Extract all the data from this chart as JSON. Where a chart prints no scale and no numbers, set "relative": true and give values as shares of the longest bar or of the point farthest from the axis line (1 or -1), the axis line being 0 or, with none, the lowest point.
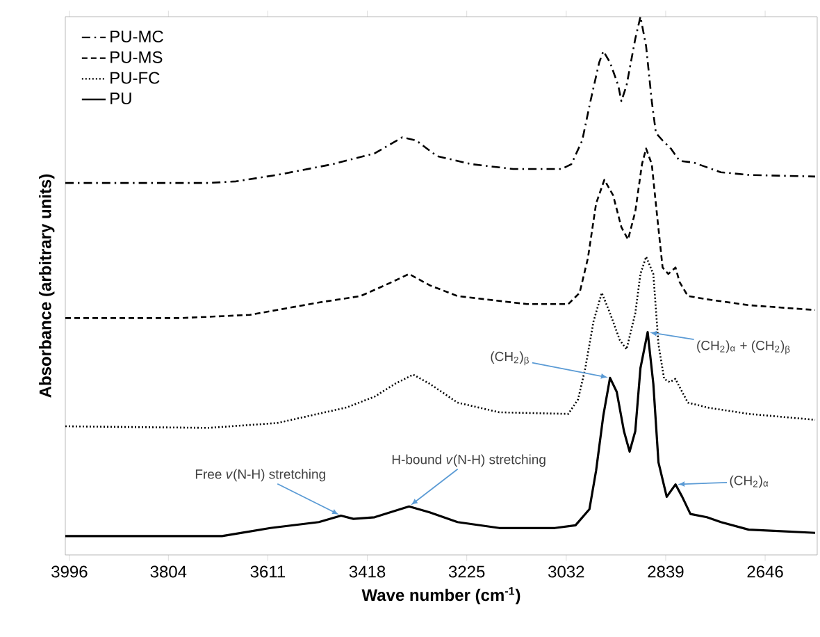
{
  "chart_data": {
    "type": "line",
    "relative": true,
    "xlabel": "Wave number (cm$^{-1}$)",
    "ylabel": "Absorbance  (arbitrary units)",
    "xlim": [
      4004,
      2545
    ],
    "xticks": [
      3996,
      3804,
      3611,
      3418,
      3225,
      3032,
      2839,
      2646
    ],
    "legend": "top left",
    "grid": false,
    "series": [
      {
        "name": "PU-MC",
        "color": "#000000",
        "line_style": "dashdot",
        "x": [
          4004,
          3727,
          3673,
          3593,
          3485,
          3404,
          3350,
          3323,
          3283,
          3216,
          3135,
          3041,
          3022,
          3001,
          2985,
          2968,
          2960,
          2947,
          2931,
          2925,
          2915,
          2898,
          2888,
          2877,
          2866,
          2858,
          2845,
          2829,
          2812,
          2785,
          2732,
          2678,
          2549
        ],
        "values": [
          0.691,
          0.691,
          0.694,
          0.706,
          0.726,
          0.746,
          0.776,
          0.77,
          0.741,
          0.726,
          0.717,
          0.717,
          0.726,
          0.77,
          0.843,
          0.915,
          0.936,
          0.915,
          0.872,
          0.843,
          0.872,
          0.959,
          1.0,
          0.945,
          0.843,
          0.784,
          0.77,
          0.755,
          0.732,
          0.729,
          0.711,
          0.706,
          0.703
        ]
      },
      {
        "name": "PU-MS",
        "color": "#000000",
        "line_style": "dashed",
        "x": [
          4004,
          3781,
          3646,
          3512,
          3431,
          3377,
          3337,
          3297,
          3243,
          3108,
          3028,
          3006,
          2990,
          2974,
          2958,
          2941,
          2925,
          2912,
          2898,
          2885,
          2877,
          2866,
          2855,
          2845,
          2834,
          2820,
          2812,
          2796,
          2759,
          2678,
          2549
        ],
        "values": [
          0.44,
          0.44,
          0.446,
          0.469,
          0.481,
          0.504,
          0.522,
          0.501,
          0.481,
          0.466,
          0.466,
          0.487,
          0.551,
          0.653,
          0.697,
          0.668,
          0.609,
          0.586,
          0.638,
          0.726,
          0.755,
          0.726,
          0.624,
          0.534,
          0.522,
          0.534,
          0.507,
          0.481,
          0.475,
          0.464,
          0.455
        ]
      },
      {
        "name": "PU-FC",
        "color": "#000000",
        "line_style": "dotted",
        "x": [
          4004,
          3727,
          3593,
          3458,
          3404,
          3364,
          3329,
          3297,
          3243,
          3162,
          3028,
          3009,
          2995,
          2979,
          2963,
          2947,
          2928,
          2915,
          2898,
          2888,
          2877,
          2863,
          2853,
          2842,
          2831,
          2820,
          2812,
          2796,
          2759,
          2678,
          2549
        ],
        "values": [
          0.239,
          0.236,
          0.245,
          0.274,
          0.294,
          0.318,
          0.335,
          0.318,
          0.283,
          0.265,
          0.262,
          0.289,
          0.347,
          0.434,
          0.487,
          0.449,
          0.399,
          0.382,
          0.449,
          0.522,
          0.554,
          0.522,
          0.391,
          0.327,
          0.321,
          0.327,
          0.312,
          0.283,
          0.274,
          0.262,
          0.251
        ]
      },
      {
        "name": "PU",
        "color": "#000000",
        "line_style": "solid",
        "x": [
          4004,
          3700,
          3606,
          3512,
          3469,
          3445,
          3404,
          3337,
          3297,
          3243,
          3162,
          3054,
          3014,
          2987,
          2974,
          2960,
          2947,
          2934,
          2920,
          2909,
          2898,
          2888,
          2874,
          2863,
          2853,
          2837,
          2820,
          2807,
          2791,
          2759,
          2732,
          2678,
          2549
        ],
        "values": [
          0.035,
          0.035,
          0.05,
          0.061,
          0.073,
          0.067,
          0.07,
          0.09,
          0.079,
          0.061,
          0.05,
          0.05,
          0.055,
          0.085,
          0.157,
          0.259,
          0.329,
          0.303,
          0.23,
          0.192,
          0.23,
          0.347,
          0.414,
          0.318,
          0.172,
          0.108,
          0.131,
          0.108,
          0.076,
          0.07,
          0.061,
          0.047,
          0.041
        ]
      }
    ],
    "annotations": [
      {
        "text": "Free *v*(N-H) stretching",
        "x": 3469,
        "y": 0.073
      },
      {
        "text": "H-bound *v*(N-H) stretching",
        "x": 3337,
        "y": 0.09
      },
      {
        "text": "(CH$_{2}$)$_{β}$",
        "x": 2947,
        "y": 0.329
      },
      {
        "text": "(CH$_{2}$)$_{α}$ + (CH$_{2}$)$_{β}$",
        "x": 2874,
        "y": 0.414
      },
      {
        "text": "(CH$_{2}$)$_{α}$",
        "x": 2820,
        "y": 0.131
      }
    ]
  }
}
